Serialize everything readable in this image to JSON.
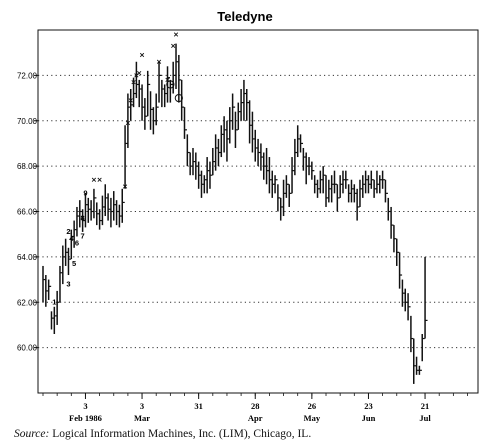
{
  "chart_data": {
    "type": "bar",
    "subtype": "ohlc-high-low-close",
    "title": "Teledyne",
    "xlabel": "",
    "ylabel": "",
    "ylim": [
      58.0,
      74.0
    ],
    "yticks": [
      60.0,
      62.0,
      64.0,
      66.0,
      68.0,
      70.0,
      72.0
    ],
    "ytick_labels": [
      "60.00",
      "62.00",
      "64.00",
      "66.00",
      "68.00",
      "70.00",
      "72.00"
    ],
    "grid": "horizontal-dotted",
    "x_day_range": [
      0,
      153
    ],
    "xticks": [
      {
        "day": 15,
        "day_label": "3",
        "month_label": "Feb 1986"
      },
      {
        "day": 35,
        "day_label": "3",
        "month_label": "Mar"
      },
      {
        "day": 55,
        "day_label": "31",
        "month_label": ""
      },
      {
        "day": 75,
        "day_label": "28",
        "month_label": "Apr"
      },
      {
        "day": 95,
        "day_label": "26",
        "month_label": "May"
      },
      {
        "day": 115,
        "day_label": "23",
        "month_label": "Jun"
      },
      {
        "day": 135,
        "day_label": "21",
        "month_label": "Jul"
      }
    ],
    "bars": [
      [
        0,
        63.6,
        62.0,
        63.0
      ],
      [
        1,
        63.2,
        61.8,
        62.5
      ],
      [
        2,
        63.0,
        62.1,
        62.7
      ],
      [
        3,
        61.6,
        60.8,
        61.3
      ],
      [
        4,
        61.8,
        60.6,
        61.4
      ],
      [
        5,
        62.5,
        61.0,
        62.0
      ],
      [
        6,
        63.6,
        62.0,
        63.3
      ],
      [
        7,
        64.5,
        62.8,
        64.0
      ],
      [
        8,
        64.8,
        63.6,
        64.2
      ],
      [
        9,
        64.4,
        63.2,
        63.9
      ],
      [
        10,
        65.2,
        63.9,
        64.9
      ],
      [
        11,
        65.6,
        64.4,
        65.2
      ],
      [
        12,
        66.2,
        64.9,
        65.8
      ],
      [
        13,
        66.5,
        65.3,
        66.0
      ],
      [
        14,
        66.1,
        65.1,
        65.6
      ],
      [
        15,
        66.8,
        65.3,
        66.3
      ],
      [
        16,
        66.6,
        65.5,
        66.1
      ],
      [
        17,
        66.5,
        65.6,
        66.0
      ],
      [
        18,
        67.0,
        65.7,
        66.6
      ],
      [
        19,
        66.4,
        65.4,
        65.9
      ],
      [
        20,
        66.1,
        65.2,
        65.6
      ],
      [
        21,
        66.7,
        65.4,
        66.2
      ],
      [
        22,
        67.2,
        65.8,
        66.6
      ],
      [
        23,
        66.8,
        65.6,
        66.1
      ],
      [
        24,
        66.6,
        65.3,
        66.0
      ],
      [
        25,
        66.9,
        65.6,
        66.3
      ],
      [
        26,
        66.5,
        65.4,
        66.0
      ],
      [
        27,
        66.3,
        65.3,
        65.8
      ],
      [
        28,
        67.0,
        65.5,
        66.4
      ],
      [
        29,
        69.8,
        67.0,
        69.0
      ],
      [
        30,
        71.2,
        68.8,
        70.6
      ],
      [
        31,
        71.4,
        70.0,
        70.7
      ],
      [
        32,
        71.9,
        70.6,
        71.2
      ],
      [
        33,
        72.6,
        71.0,
        71.6
      ],
      [
        34,
        71.8,
        70.6,
        71.4
      ],
      [
        35,
        71.6,
        70.0,
        70.6
      ],
      [
        36,
        71.0,
        69.6,
        70.2
      ],
      [
        37,
        72.2,
        70.2,
        71.6
      ],
      [
        38,
        71.3,
        69.6,
        70.5
      ],
      [
        39,
        70.6,
        69.4,
        70.0
      ],
      [
        40,
        71.2,
        69.8,
        70.6
      ],
      [
        41,
        72.6,
        70.8,
        72.0
      ],
      [
        42,
        71.8,
        70.6,
        71.4
      ],
      [
        43,
        71.6,
        70.6,
        71.2
      ],
      [
        44,
        72.4,
        70.8,
        71.9
      ],
      [
        45,
        71.8,
        70.8,
        71.6
      ],
      [
        46,
        72.6,
        71.2,
        72.0
      ],
      [
        47,
        73.4,
        71.4,
        72.6
      ],
      [
        48,
        72.9,
        70.8,
        71.8
      ],
      [
        49,
        71.8,
        70.0,
        70.6
      ],
      [
        50,
        70.6,
        69.2,
        69.6
      ],
      [
        51,
        69.4,
        68.0,
        68.6
      ],
      [
        52,
        68.6,
        67.6,
        68.0
      ],
      [
        53,
        68.8,
        67.6,
        68.2
      ],
      [
        54,
        68.6,
        67.4,
        68.0
      ],
      [
        55,
        68.2,
        67.0,
        67.6
      ],
      [
        56,
        67.8,
        66.6,
        67.2
      ],
      [
        57,
        67.6,
        66.8,
        67.4
      ],
      [
        58,
        68.4,
        66.8,
        67.8
      ],
      [
        59,
        68.2,
        67.0,
        67.6
      ],
      [
        60,
        68.8,
        67.6,
        68.2
      ],
      [
        61,
        69.4,
        67.8,
        68.8
      ],
      [
        62,
        69.2,
        68.0,
        68.6
      ],
      [
        63,
        69.8,
        68.4,
        69.4
      ],
      [
        64,
        70.2,
        68.6,
        69.6
      ],
      [
        65,
        70.0,
        68.2,
        69.2
      ],
      [
        66,
        70.6,
        69.0,
        70.0
      ],
      [
        67,
        71.2,
        69.6,
        70.6
      ],
      [
        68,
        70.4,
        68.8,
        69.6
      ],
      [
        69,
        70.8,
        69.6,
        70.4
      ],
      [
        70,
        71.4,
        70.0,
        70.8
      ],
      [
        71,
        71.8,
        70.0,
        71.2
      ],
      [
        72,
        71.4,
        70.0,
        70.8
      ],
      [
        73,
        70.9,
        69.0,
        69.8
      ],
      [
        74,
        70.4,
        68.6,
        69.2
      ],
      [
        75,
        69.6,
        68.2,
        68.8
      ],
      [
        76,
        69.2,
        68.0,
        68.6
      ],
      [
        77,
        69.0,
        67.8,
        68.4
      ],
      [
        78,
        68.6,
        67.4,
        68.0
      ],
      [
        79,
        68.8,
        67.2,
        67.8
      ],
      [
        80,
        68.4,
        66.8,
        67.4
      ],
      [
        81,
        67.8,
        66.6,
        67.2
      ],
      [
        82,
        67.6,
        66.8,
        67.4
      ],
      [
        83,
        67.2,
        66.0,
        66.6
      ],
      [
        84,
        66.6,
        65.6,
        66.2
      ],
      [
        85,
        67.4,
        65.8,
        66.8
      ],
      [
        86,
        67.6,
        66.6,
        67.2
      ],
      [
        87,
        67.2,
        66.2,
        66.8
      ],
      [
        88,
        68.4,
        66.8,
        67.8
      ],
      [
        89,
        69.2,
        67.6,
        68.6
      ],
      [
        90,
        69.8,
        68.4,
        69.2
      ],
      [
        91,
        69.4,
        68.6,
        69.0
      ],
      [
        92,
        68.8,
        67.8,
        68.4
      ],
      [
        93,
        68.6,
        67.2,
        68.0
      ],
      [
        94,
        68.4,
        67.6,
        68.0
      ],
      [
        95,
        68.2,
        67.4,
        67.8
      ],
      [
        96,
        67.6,
        66.8,
        67.2
      ],
      [
        97,
        67.4,
        66.6,
        67.0
      ],
      [
        98,
        67.8,
        66.8,
        67.4
      ],
      [
        99,
        68.0,
        66.8,
        67.6
      ],
      [
        100,
        67.6,
        66.2,
        66.6
      ],
      [
        101,
        67.4,
        66.4,
        67.0
      ],
      [
        102,
        67.6,
        66.4,
        67.2
      ],
      [
        103,
        67.8,
        66.8,
        67.2
      ],
      [
        104,
        67.2,
        66.0,
        66.6
      ],
      [
        105,
        67.6,
        66.6,
        67.2
      ],
      [
        106,
        67.8,
        66.8,
        67.4
      ],
      [
        107,
        67.8,
        67.0,
        67.4
      ],
      [
        108,
        67.2,
        66.4,
        66.8
      ],
      [
        109,
        67.4,
        66.4,
        67.0
      ],
      [
        110,
        67.2,
        66.4,
        66.8
      ],
      [
        111,
        67.0,
        65.6,
        66.2
      ],
      [
        112,
        67.4,
        66.2,
        67.0
      ],
      [
        113,
        67.6,
        66.6,
        67.2
      ],
      [
        114,
        67.8,
        66.8,
        67.4
      ],
      [
        115,
        67.6,
        66.8,
        67.2
      ],
      [
        116,
        67.8,
        67.0,
        67.4
      ],
      [
        117,
        67.4,
        66.6,
        67.0
      ],
      [
        118,
        67.8,
        66.8,
        67.2
      ],
      [
        119,
        67.6,
        66.8,
        67.4
      ],
      [
        120,
        67.8,
        67.0,
        67.4
      ],
      [
        121,
        67.4,
        66.4,
        66.8
      ],
      [
        122,
        66.6,
        65.6,
        66.0
      ],
      [
        123,
        66.2,
        64.8,
        65.4
      ],
      [
        124,
        65.4,
        64.2,
        64.8
      ],
      [
        125,
        64.8,
        63.6,
        64.2
      ],
      [
        126,
        64.2,
        62.6,
        63.2
      ],
      [
        127,
        63.0,
        61.8,
        62.4
      ],
      [
        128,
        62.6,
        61.6,
        62.0
      ],
      [
        129,
        62.4,
        61.2,
        61.8
      ],
      [
        130,
        61.4,
        59.8,
        60.4
      ],
      [
        131,
        60.4,
        58.4,
        59.2
      ],
      [
        132,
        59.6,
        58.8,
        59.0
      ],
      [
        133,
        59.2,
        58.8,
        59.0
      ],
      [
        134,
        60.6,
        59.4,
        60.4
      ],
      [
        135,
        64.0,
        60.4,
        61.2
      ]
    ],
    "annotations": {
      "numbers": [
        {
          "label": "1",
          "day": 4,
          "price": 61.9
        },
        {
          "label": "2",
          "day": 9,
          "price": 65.0
        },
        {
          "label": "3",
          "day": 9,
          "price": 62.7
        },
        {
          "label": "4",
          "day": 10,
          "price": 64.7
        },
        {
          "label": "5",
          "day": 11,
          "price": 63.6
        },
        {
          "label": "6",
          "day": 12,
          "price": 64.5
        },
        {
          "label": "7",
          "day": 14,
          "price": 64.8
        },
        {
          "label": "8",
          "day": 14,
          "price": 65.6
        },
        {
          "label": "9",
          "day": 15,
          "price": 66.7
        }
      ],
      "x_marks": [
        {
          "day": 18,
          "price": 67.4
        },
        {
          "day": 20,
          "price": 67.4
        },
        {
          "day": 29,
          "price": 67.1
        },
        {
          "day": 30,
          "price": 69.9
        },
        {
          "day": 31,
          "price": 70.9
        },
        {
          "day": 32,
          "price": 71.7
        },
        {
          "day": 33,
          "price": 72.0
        },
        {
          "day": 34,
          "price": 72.1
        },
        {
          "day": 35,
          "price": 72.9
        },
        {
          "day": 41,
          "price": 72.6
        },
        {
          "day": 44,
          "price": 71.8
        },
        {
          "day": 46,
          "price": 73.3
        },
        {
          "day": 47,
          "price": 73.8
        }
      ],
      "circles": [
        {
          "day": 45,
          "price": 71.6
        },
        {
          "day": 48,
          "price": 71.0
        }
      ]
    }
  },
  "source": {
    "label": "Source:",
    "text": "Logical Information Machines, Inc. (LIM), Chicago, IL."
  }
}
